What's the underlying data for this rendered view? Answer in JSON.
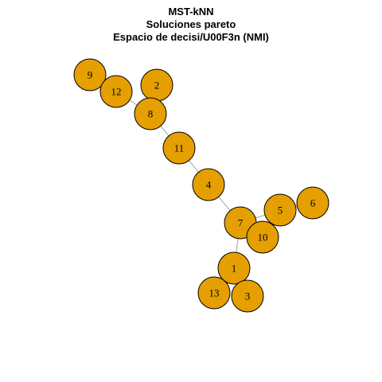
{
  "title": {
    "line1": "MST-kNN",
    "line2": "Soluciones pareto",
    "line3": "Espacio de decisi/U00F3n (NMI)"
  },
  "colors": {
    "node_fill": "#E59F00",
    "node_stroke": "#000000",
    "edge": "#A6A6A6"
  },
  "graph": {
    "nodes": [
      {
        "id": "9",
        "label": "9"
      },
      {
        "id": "12",
        "label": "12"
      },
      {
        "id": "2",
        "label": "2"
      },
      {
        "id": "8",
        "label": "8"
      },
      {
        "id": "11",
        "label": "11"
      },
      {
        "id": "4",
        "label": "4"
      },
      {
        "id": "6",
        "label": "6"
      },
      {
        "id": "5",
        "label": "5"
      },
      {
        "id": "7",
        "label": "7"
      },
      {
        "id": "10",
        "label": "10"
      },
      {
        "id": "1",
        "label": "1"
      },
      {
        "id": "13",
        "label": "13"
      },
      {
        "id": "3",
        "label": "3"
      }
    ],
    "edges": [
      {
        "source": "9",
        "target": "12"
      },
      {
        "source": "12",
        "target": "8"
      },
      {
        "source": "2",
        "target": "8"
      },
      {
        "source": "8",
        "target": "11"
      },
      {
        "source": "11",
        "target": "4"
      },
      {
        "source": "4",
        "target": "7"
      },
      {
        "source": "7",
        "target": "5"
      },
      {
        "source": "7",
        "target": "10"
      },
      {
        "source": "5",
        "target": "6"
      },
      {
        "source": "7",
        "target": "1"
      },
      {
        "source": "1",
        "target": "13"
      },
      {
        "source": "1",
        "target": "3"
      }
    ]
  }
}
